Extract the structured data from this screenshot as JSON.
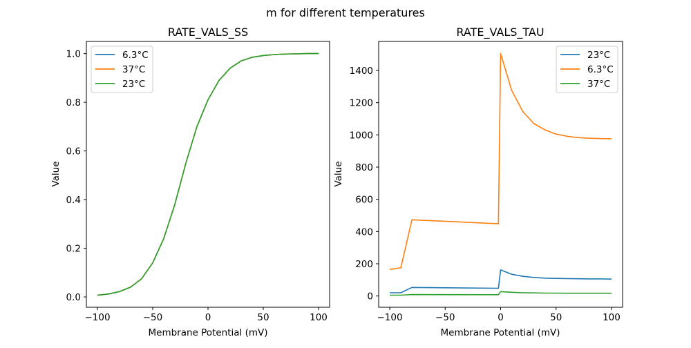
{
  "suptitle": "m for different temperatures",
  "chart_data": [
    {
      "type": "line",
      "title": "RATE_VALS_SS",
      "xlabel": "Membrane Potential (mV)",
      "ylabel": "Value",
      "xlim": [
        -110,
        110
      ],
      "ylim": [
        -0.0425,
        1.05
      ],
      "xticks": [
        -100,
        -50,
        0,
        50,
        100
      ],
      "xtick_labels": [
        "−100",
        "−50",
        "0",
        "50",
        "100"
      ],
      "yticks": [
        0,
        0.2,
        0.4,
        0.6,
        0.8,
        1.0
      ],
      "ytick_labels": [
        "0.0",
        "0.2",
        "0.4",
        "0.6",
        "0.8",
        "1.0"
      ],
      "grid": false,
      "legend_position": "upper-left",
      "x": [
        -100,
        -90,
        -80,
        -70,
        -60,
        -50,
        -40,
        -30,
        -20,
        -10,
        0,
        10,
        20,
        30,
        40,
        50,
        60,
        70,
        80,
        90,
        100
      ],
      "series": [
        {
          "name": "6.3°C",
          "color": "#1f77b4",
          "values": [
            0.007,
            0.012,
            0.022,
            0.04,
            0.075,
            0.14,
            0.24,
            0.38,
            0.55,
            0.7,
            0.81,
            0.89,
            0.94,
            0.97,
            0.985,
            0.992,
            0.996,
            0.998,
            0.999,
            1.0,
            1.0
          ]
        },
        {
          "name": "37°C",
          "color": "#ff7f0e",
          "values": [
            0.007,
            0.012,
            0.022,
            0.04,
            0.075,
            0.14,
            0.24,
            0.38,
            0.55,
            0.7,
            0.81,
            0.89,
            0.94,
            0.97,
            0.985,
            0.992,
            0.996,
            0.998,
            0.999,
            1.0,
            1.0
          ]
        },
        {
          "name": "23°C",
          "color": "#2ca02c",
          "values": [
            0.007,
            0.012,
            0.022,
            0.04,
            0.075,
            0.14,
            0.24,
            0.38,
            0.55,
            0.7,
            0.81,
            0.89,
            0.94,
            0.97,
            0.985,
            0.992,
            0.996,
            0.998,
            0.999,
            1.0,
            1.0
          ]
        }
      ]
    },
    {
      "type": "line",
      "title": "RATE_VALS_TAU",
      "xlabel": "Membrane Potential (mV)",
      "ylabel": "Value",
      "xlim": [
        -110,
        110
      ],
      "ylim": [
        -70,
        1580
      ],
      "xticks": [
        -100,
        -50,
        0,
        50,
        100
      ],
      "xtick_labels": [
        "−100",
        "−50",
        "0",
        "50",
        "100"
      ],
      "yticks": [
        0,
        200,
        400,
        600,
        800,
        1000,
        1200,
        1400
      ],
      "ytick_labels": [
        "0",
        "200",
        "400",
        "600",
        "800",
        "1000",
        "1200",
        "1400"
      ],
      "grid": false,
      "legend_position": "upper-right",
      "x": [
        -100,
        -90,
        -80,
        -2,
        0,
        10,
        20,
        30,
        40,
        50,
        60,
        70,
        80,
        90,
        100
      ],
      "series": [
        {
          "name": "23°C",
          "color": "#1f77b4",
          "values": [
            20,
            20,
            53,
            48,
            162,
            135,
            122,
            115,
            111,
            109,
            108,
            107,
            106,
            106,
            105
          ]
        },
        {
          "name": "6.3°C",
          "color": "#ff7f0e",
          "values": [
            165,
            175,
            473,
            448,
            1505,
            1276,
            1145,
            1070,
            1031,
            1005,
            991,
            983,
            979,
            977,
            976
          ]
        },
        {
          "name": "37°C",
          "color": "#2ca02c",
          "values": [
            5,
            5,
            9,
            8,
            27,
            23,
            20,
            19,
            18,
            18,
            17,
            17,
            17,
            17,
            17
          ]
        }
      ]
    }
  ]
}
